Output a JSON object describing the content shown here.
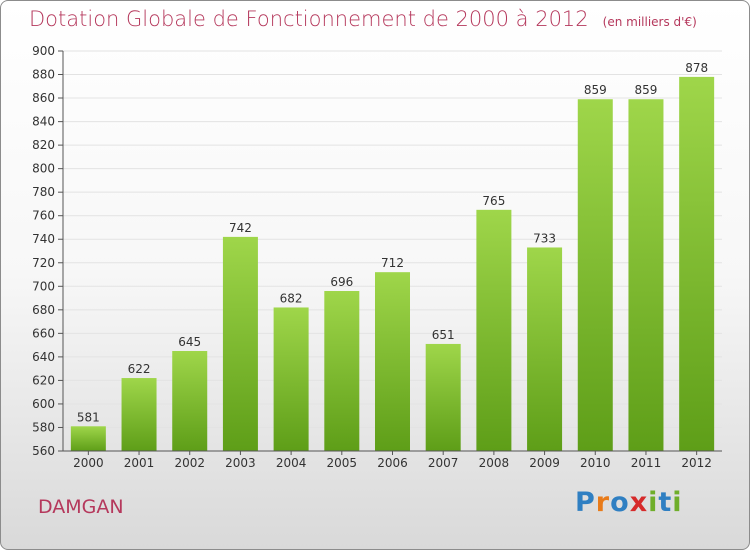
{
  "title": "Dotation Globale de Fonctionnement de 2000 à 2012",
  "unit": "(en milliers d'€)",
  "commune": "DAMGAN",
  "logo": {
    "text": "Proxiti",
    "letter_colors": [
      "#2f7fc2",
      "#e87b1a",
      "#2f7fc2",
      "#d62a2a",
      "#6fae2a",
      "#2f7fc2",
      "#6fae2a"
    ]
  },
  "chart_data": {
    "type": "bar",
    "categories": [
      "2000",
      "2001",
      "2002",
      "2003",
      "2004",
      "2005",
      "2006",
      "2007",
      "2008",
      "2009",
      "2010",
      "2011",
      "2012"
    ],
    "values": [
      581,
      622,
      645,
      742,
      682,
      696,
      712,
      651,
      765,
      733,
      859,
      859,
      878
    ],
    "ylim": [
      560,
      900
    ],
    "ytick_step": 20,
    "grid": true,
    "bar_color": "#7dbf2e",
    "title": "Dotation Globale de Fonctionnement de 2000 à 2012",
    "xlabel": "",
    "ylabel": ""
  }
}
